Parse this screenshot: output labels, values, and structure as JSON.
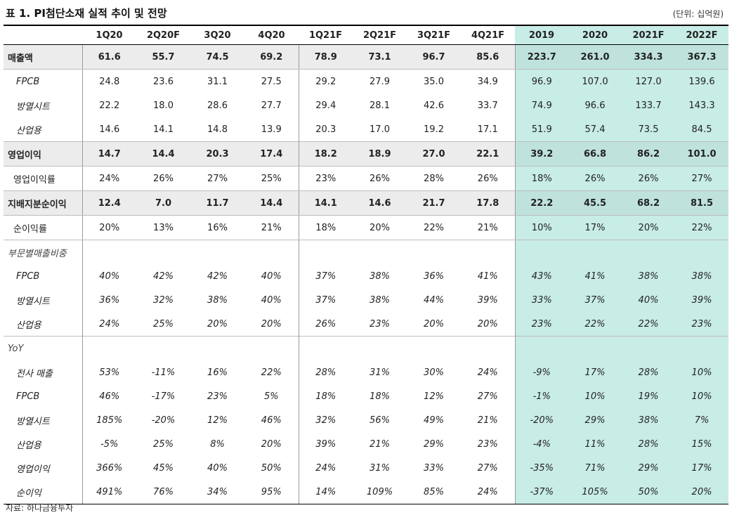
{
  "title": "표 1. PI첨단소재 실적 추이 및 전망",
  "unit": "(단위: 십억원)",
  "source": "자료: 하나금융투자",
  "headers": [
    "1Q20",
    "2Q20F",
    "3Q20",
    "4Q20",
    "1Q21F",
    "2Q21F",
    "3Q21F",
    "4Q21F",
    "2019",
    "2020",
    "2021F",
    "2022F"
  ],
  "rows": [
    {
      "label": "매출액",
      "style": "bold",
      "values": [
        "61.6",
        "55.7",
        "74.5",
        "69.2",
        "78.9",
        "73.1",
        "96.7",
        "85.6",
        "223.7",
        "261.0",
        "334.3",
        "367.3"
      ]
    },
    {
      "label": "FPCB",
      "style": "sub-italic",
      "values": [
        "24.8",
        "23.6",
        "31.1",
        "27.5",
        "29.2",
        "27.9",
        "35.0",
        "34.9",
        "96.9",
        "107.0",
        "127.0",
        "139.6"
      ]
    },
    {
      "label": "방열시트",
      "style": "sub-italic",
      "values": [
        "22.2",
        "18.0",
        "28.6",
        "27.7",
        "29.4",
        "28.1",
        "42.6",
        "33.7",
        "74.9",
        "96.6",
        "133.7",
        "143.3"
      ]
    },
    {
      "label": "산업용",
      "style": "sub-italic",
      "values": [
        "14.6",
        "14.1",
        "14.8",
        "13.9",
        "20.3",
        "17.0",
        "19.2",
        "17.1",
        "51.9",
        "57.4",
        "73.5",
        "84.5"
      ]
    },
    {
      "label": "영업이익",
      "style": "bold",
      "values": [
        "14.7",
        "14.4",
        "20.3",
        "17.4",
        "18.2",
        "18.9",
        "27.0",
        "22.1",
        "39.2",
        "66.8",
        "86.2",
        "101.0"
      ]
    },
    {
      "label": "영업이익률",
      "style": "ratio",
      "values": [
        "24%",
        "26%",
        "27%",
        "25%",
        "23%",
        "26%",
        "28%",
        "26%",
        "18%",
        "26%",
        "26%",
        "27%"
      ]
    },
    {
      "label": "지배지분순이익",
      "style": "bold",
      "values": [
        "12.4",
        "7.0",
        "11.7",
        "14.4",
        "14.1",
        "14.6",
        "21.7",
        "17.8",
        "22.2",
        "45.5",
        "68.2",
        "81.5"
      ]
    },
    {
      "label": "순이익률",
      "style": "ratio",
      "values": [
        "20%",
        "13%",
        "16%",
        "21%",
        "18%",
        "20%",
        "22%",
        "21%",
        "10%",
        "17%",
        "20%",
        "22%"
      ]
    },
    {
      "label": "부문별매출비중",
      "style": "section",
      "values": [
        "",
        "",
        "",
        "",
        "",
        "",
        "",
        "",
        "",
        "",
        "",
        ""
      ]
    },
    {
      "label": "FPCB",
      "style": "pct",
      "values": [
        "40%",
        "42%",
        "42%",
        "40%",
        "37%",
        "38%",
        "36%",
        "41%",
        "43%",
        "41%",
        "38%",
        "38%"
      ]
    },
    {
      "label": "방열시트",
      "style": "pct",
      "values": [
        "36%",
        "32%",
        "38%",
        "40%",
        "37%",
        "38%",
        "44%",
        "39%",
        "33%",
        "37%",
        "40%",
        "39%"
      ]
    },
    {
      "label": "산업용",
      "style": "pct",
      "values": [
        "24%",
        "25%",
        "20%",
        "20%",
        "26%",
        "23%",
        "20%",
        "20%",
        "23%",
        "22%",
        "22%",
        "23%"
      ]
    },
    {
      "label": "YoY",
      "style": "section",
      "values": [
        "",
        "",
        "",
        "",
        "",
        "",
        "",
        "",
        "",
        "",
        "",
        ""
      ]
    },
    {
      "label": "전사 매출",
      "style": "pct",
      "values": [
        "53%",
        "-11%",
        "16%",
        "22%",
        "28%",
        "31%",
        "30%",
        "24%",
        "-9%",
        "17%",
        "28%",
        "10%"
      ]
    },
    {
      "label": "FPCB",
      "style": "pct",
      "values": [
        "46%",
        "-17%",
        "23%",
        "5%",
        "18%",
        "18%",
        "12%",
        "27%",
        "-1%",
        "10%",
        "19%",
        "10%"
      ]
    },
    {
      "label": "방열시트",
      "style": "pct",
      "values": [
        "185%",
        "-20%",
        "12%",
        "46%",
        "32%",
        "56%",
        "49%",
        "21%",
        "-20%",
        "29%",
        "38%",
        "7%"
      ]
    },
    {
      "label": "산업용",
      "style": "pct",
      "values": [
        "-5%",
        "25%",
        "8%",
        "20%",
        "39%",
        "21%",
        "29%",
        "23%",
        "-4%",
        "11%",
        "28%",
        "15%"
      ]
    },
    {
      "label": "영업이익",
      "style": "pct",
      "values": [
        "366%",
        "45%",
        "40%",
        "50%",
        "24%",
        "31%",
        "33%",
        "27%",
        "-35%",
        "71%",
        "29%",
        "17%"
      ]
    },
    {
      "label": "순이익",
      "style": "pct",
      "values": [
        "491%",
        "76%",
        "34%",
        "95%",
        "14%",
        "109%",
        "85%",
        "24%",
        "-37%",
        "105%",
        "50%",
        "20%"
      ]
    }
  ]
}
